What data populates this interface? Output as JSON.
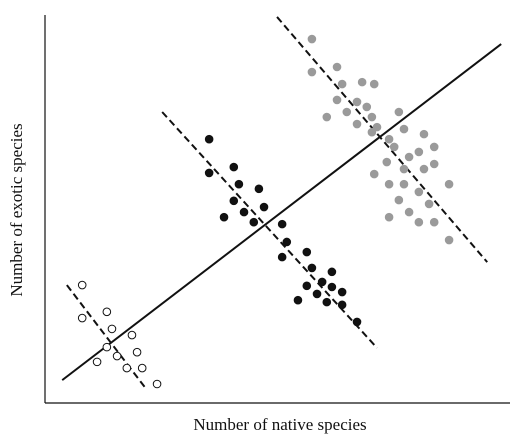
{
  "chart_data": {
    "type": "scatter",
    "x_label": "Number of native species",
    "y_label": "Number of exotic species",
    "xlim": [
      0,
      100
    ],
    "ylim": [
      0,
      100
    ],
    "series": [
      {
        "color": "#ffffff",
        "stroke": "#111111",
        "x": [
          8.0,
          8.0,
          13.3,
          14.4,
          18.7,
          13.3,
          15.5,
          19.8,
          11.2,
          17.6,
          20.9,
          24.1
        ],
        "values": [
          30.4,
          21.9,
          23.5,
          19.1,
          17.5,
          14.4,
          12.1,
          13.1,
          10.6,
          9.0,
          9.0,
          4.9
        ]
      },
      {
        "color": "#111111",
        "stroke": "#111111",
        "x": [
          35.3,
          35.3,
          40.6,
          41.7,
          46.0,
          40.6,
          47.1,
          42.8,
          38.5,
          44.9,
          51.0,
          52.0,
          51.0,
          56.3,
          57.4,
          61.7,
          59.6,
          56.3,
          61.7,
          58.5,
          63.9,
          54.4,
          60.6,
          63.9,
          67.1
        ],
        "values": [
          68.0,
          59.3,
          60.8,
          56.4,
          55.2,
          52.1,
          50.5,
          49.2,
          47.9,
          46.6,
          46.1,
          41.5,
          37.6,
          38.9,
          34.8,
          33.8,
          31.2,
          30.2,
          29.9,
          28.1,
          28.6,
          26.5,
          26.0,
          25.3,
          20.9
        ]
      },
      {
        "color": "#9a9a9a",
        "stroke": "#9a9a9a",
        "x": [
          57.4,
          57.4,
          62.8,
          63.9,
          68.2,
          70.8,
          62.8,
          67.1,
          69.2,
          60.6,
          64.9,
          70.3,
          67.1,
          76.1,
          71.4,
          70.3,
          77.2,
          74.0,
          81.5,
          75.1,
          78.3,
          73.5,
          80.4,
          83.7,
          70.8,
          77.2,
          81.5,
          83.7,
          74.0,
          77.2,
          86.9,
          80.4,
          76.1,
          82.6,
          78.3,
          74.0,
          80.4,
          83.7,
          86.9
        ],
        "values": [
          93.8,
          85.3,
          86.6,
          82.2,
          82.7,
          82.2,
          78.1,
          77.6,
          76.3,
          73.7,
          75.0,
          73.7,
          71.9,
          75.0,
          71.1,
          69.8,
          70.6,
          68.0,
          69.3,
          66.0,
          63.4,
          62.1,
          64.7,
          66.0,
          59.0,
          60.3,
          60.3,
          61.6,
          56.4,
          56.4,
          56.4,
          54.4,
          52.3,
          51.3,
          49.2,
          47.9,
          46.6,
          46.6,
          42.0
        ]
      }
    ],
    "lines": [
      {
        "dash": false,
        "x": [
          3.7,
          98.1
        ],
        "y": [
          5.9,
          92.5
        ]
      },
      {
        "dash": true,
        "x": [
          4.7,
          21.9
        ],
        "y": [
          30.4,
          3.4
        ]
      },
      {
        "dash": true,
        "x": [
          25.2,
          71.4
        ],
        "y": [
          75.0,
          14.2
        ]
      },
      {
        "dash": true,
        "x": [
          49.9,
          95.1
        ],
        "y": [
          99.5,
          36.3
        ]
      }
    ]
  }
}
